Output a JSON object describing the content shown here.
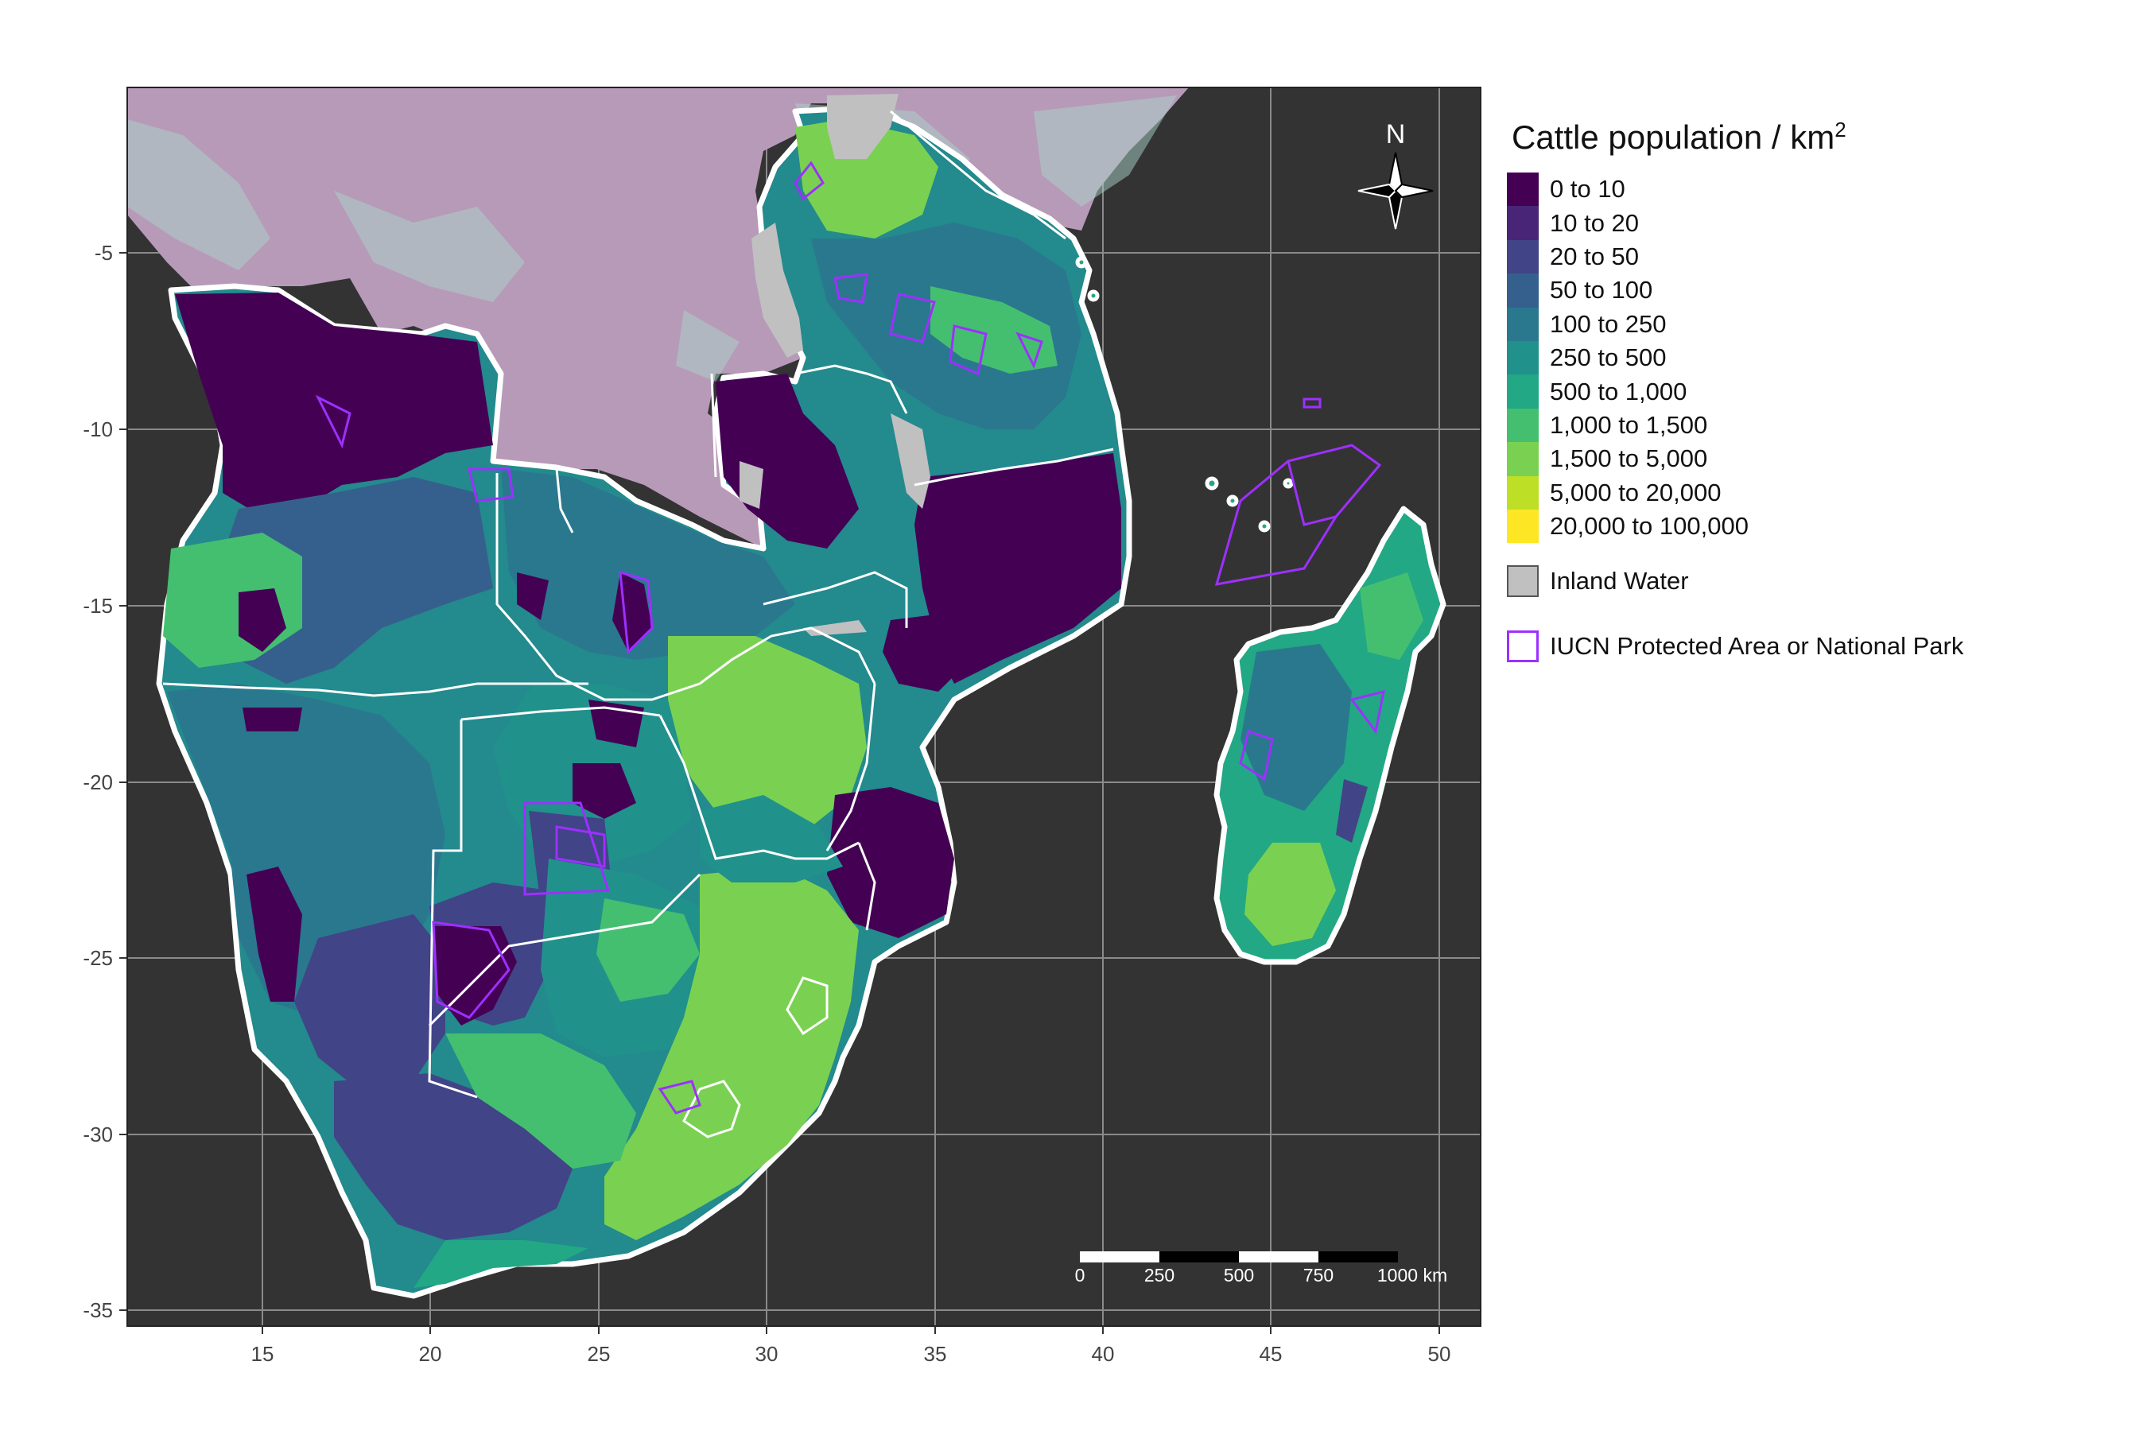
{
  "legend": {
    "title": "Cattle population / km",
    "title_sup": "2",
    "classes": [
      {
        "label": "0 to 10",
        "color": "#440154"
      },
      {
        "label": "10 to 20",
        "color": "#482576"
      },
      {
        "label": "20 to 50",
        "color": "#414487"
      },
      {
        "label": "50 to 100",
        "color": "#35608d"
      },
      {
        "label": "100 to 250",
        "color": "#2a788e"
      },
      {
        "label": "250 to 500",
        "color": "#21918c"
      },
      {
        "label": "500 to 1,000",
        "color": "#22a884"
      },
      {
        "label": "1,000 to 1,500",
        "color": "#44bf70"
      },
      {
        "label": "1,500 to 5,000",
        "color": "#7ad151"
      },
      {
        "label": "5,000 to 20,000",
        "color": "#bddf26"
      },
      {
        "label": "20,000 to 100,000",
        "color": "#fde725"
      }
    ],
    "water_label": "Inland Water",
    "water_color": "#c0c0c0",
    "protected_label": "IUCN Protected Area or National Park",
    "protected_color": "#9d30ff"
  },
  "north_arrow": {
    "label": "N"
  },
  "axes": {
    "x_ticks": [
      "15",
      "20",
      "25",
      "30",
      "35",
      "40",
      "45",
      "50"
    ],
    "y_ticks": [
      "-5",
      "-10",
      "-15",
      "-20",
      "-25",
      "-30",
      "-35"
    ]
  },
  "scale_bar": {
    "labels": [
      "0",
      "250",
      "500",
      "750",
      "1000 km"
    ]
  },
  "map_colors": {
    "ocean": "#333333",
    "grid": "#8a8a8a",
    "border": "#ffffff",
    "masked_region": "#b79ab8"
  }
}
